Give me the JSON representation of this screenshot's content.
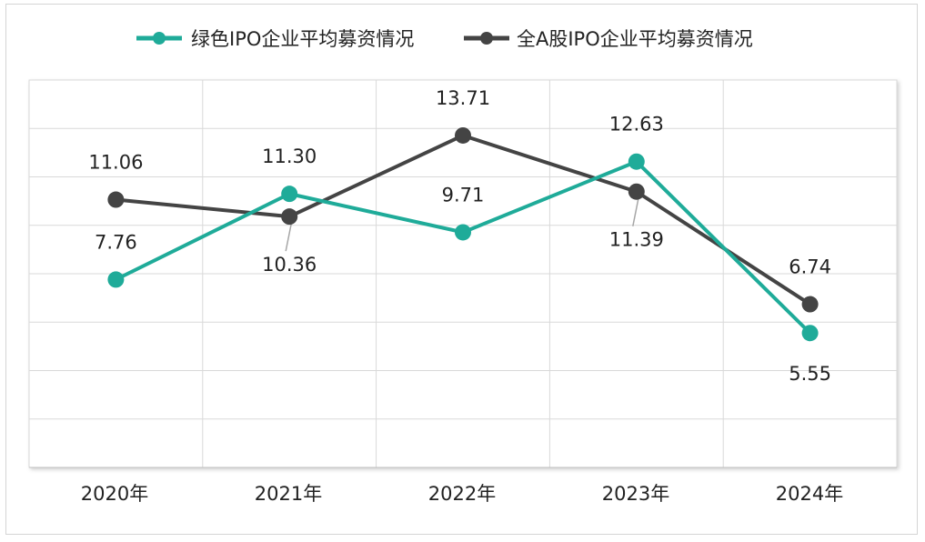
{
  "chart_data": {
    "type": "line",
    "title": "",
    "xlabel": "",
    "ylabel": "",
    "ylim": [
      0,
      16
    ],
    "grid": true,
    "legend_position": "top-center",
    "categories": [
      "2020年",
      "2021年",
      "2022年",
      "2023年",
      "2024年"
    ],
    "series": [
      {
        "name": "绿色IPO企业平均募资情况",
        "color": "#1fab99",
        "values": [
          7.76,
          11.3,
          9.71,
          12.63,
          5.55
        ],
        "labels": [
          "7.76",
          "11.30",
          "9.71",
          "12.63",
          "5.55"
        ]
      },
      {
        "name": "全A股IPO企业平均募资情况",
        "color": "#444444",
        "values": [
          11.06,
          10.36,
          13.71,
          11.39,
          6.74
        ],
        "labels": [
          "11.06",
          "10.36",
          "13.71",
          "11.39",
          "6.74"
        ]
      }
    ]
  }
}
